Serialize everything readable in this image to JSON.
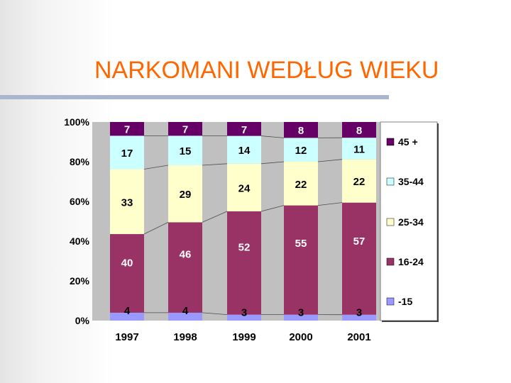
{
  "slide": {
    "title": "NARKOMANI WEDŁUG WIEKU"
  },
  "colors": {
    "title": "#ff6600",
    "plot_background": "#c0c0c0",
    "legend_background": "#ffffff",
    "connector_lines": "#000000"
  },
  "chart_data": {
    "type": "bar",
    "stacked": true,
    "percent_stacked": true,
    "title": "",
    "xlabel": "",
    "ylabel": "",
    "categories": [
      "1997",
      "1998",
      "1999",
      "2000",
      "2001"
    ],
    "ylim": [
      0,
      100
    ],
    "yticks": [
      "0%",
      "20%",
      "40%",
      "60%",
      "80%",
      "100%"
    ],
    "grid": false,
    "legend_position": "right",
    "series": [
      {
        "name": "-15",
        "color": "#9999ff",
        "values": [
          4,
          4,
          3,
          3,
          3
        ]
      },
      {
        "name": "16-24",
        "color": "#993366",
        "values": [
          40,
          46,
          52,
          55,
          57
        ]
      },
      {
        "name": "25-34",
        "color": "#ffffcc",
        "values": [
          33,
          29,
          24,
          22,
          22
        ]
      },
      {
        "name": "35-44",
        "color": "#ccffff",
        "values": [
          17,
          15,
          14,
          12,
          11
        ]
      },
      {
        "name": "45 +",
        "color": "#660066",
        "values": [
          7,
          7,
          7,
          8,
          8
        ]
      }
    ]
  }
}
